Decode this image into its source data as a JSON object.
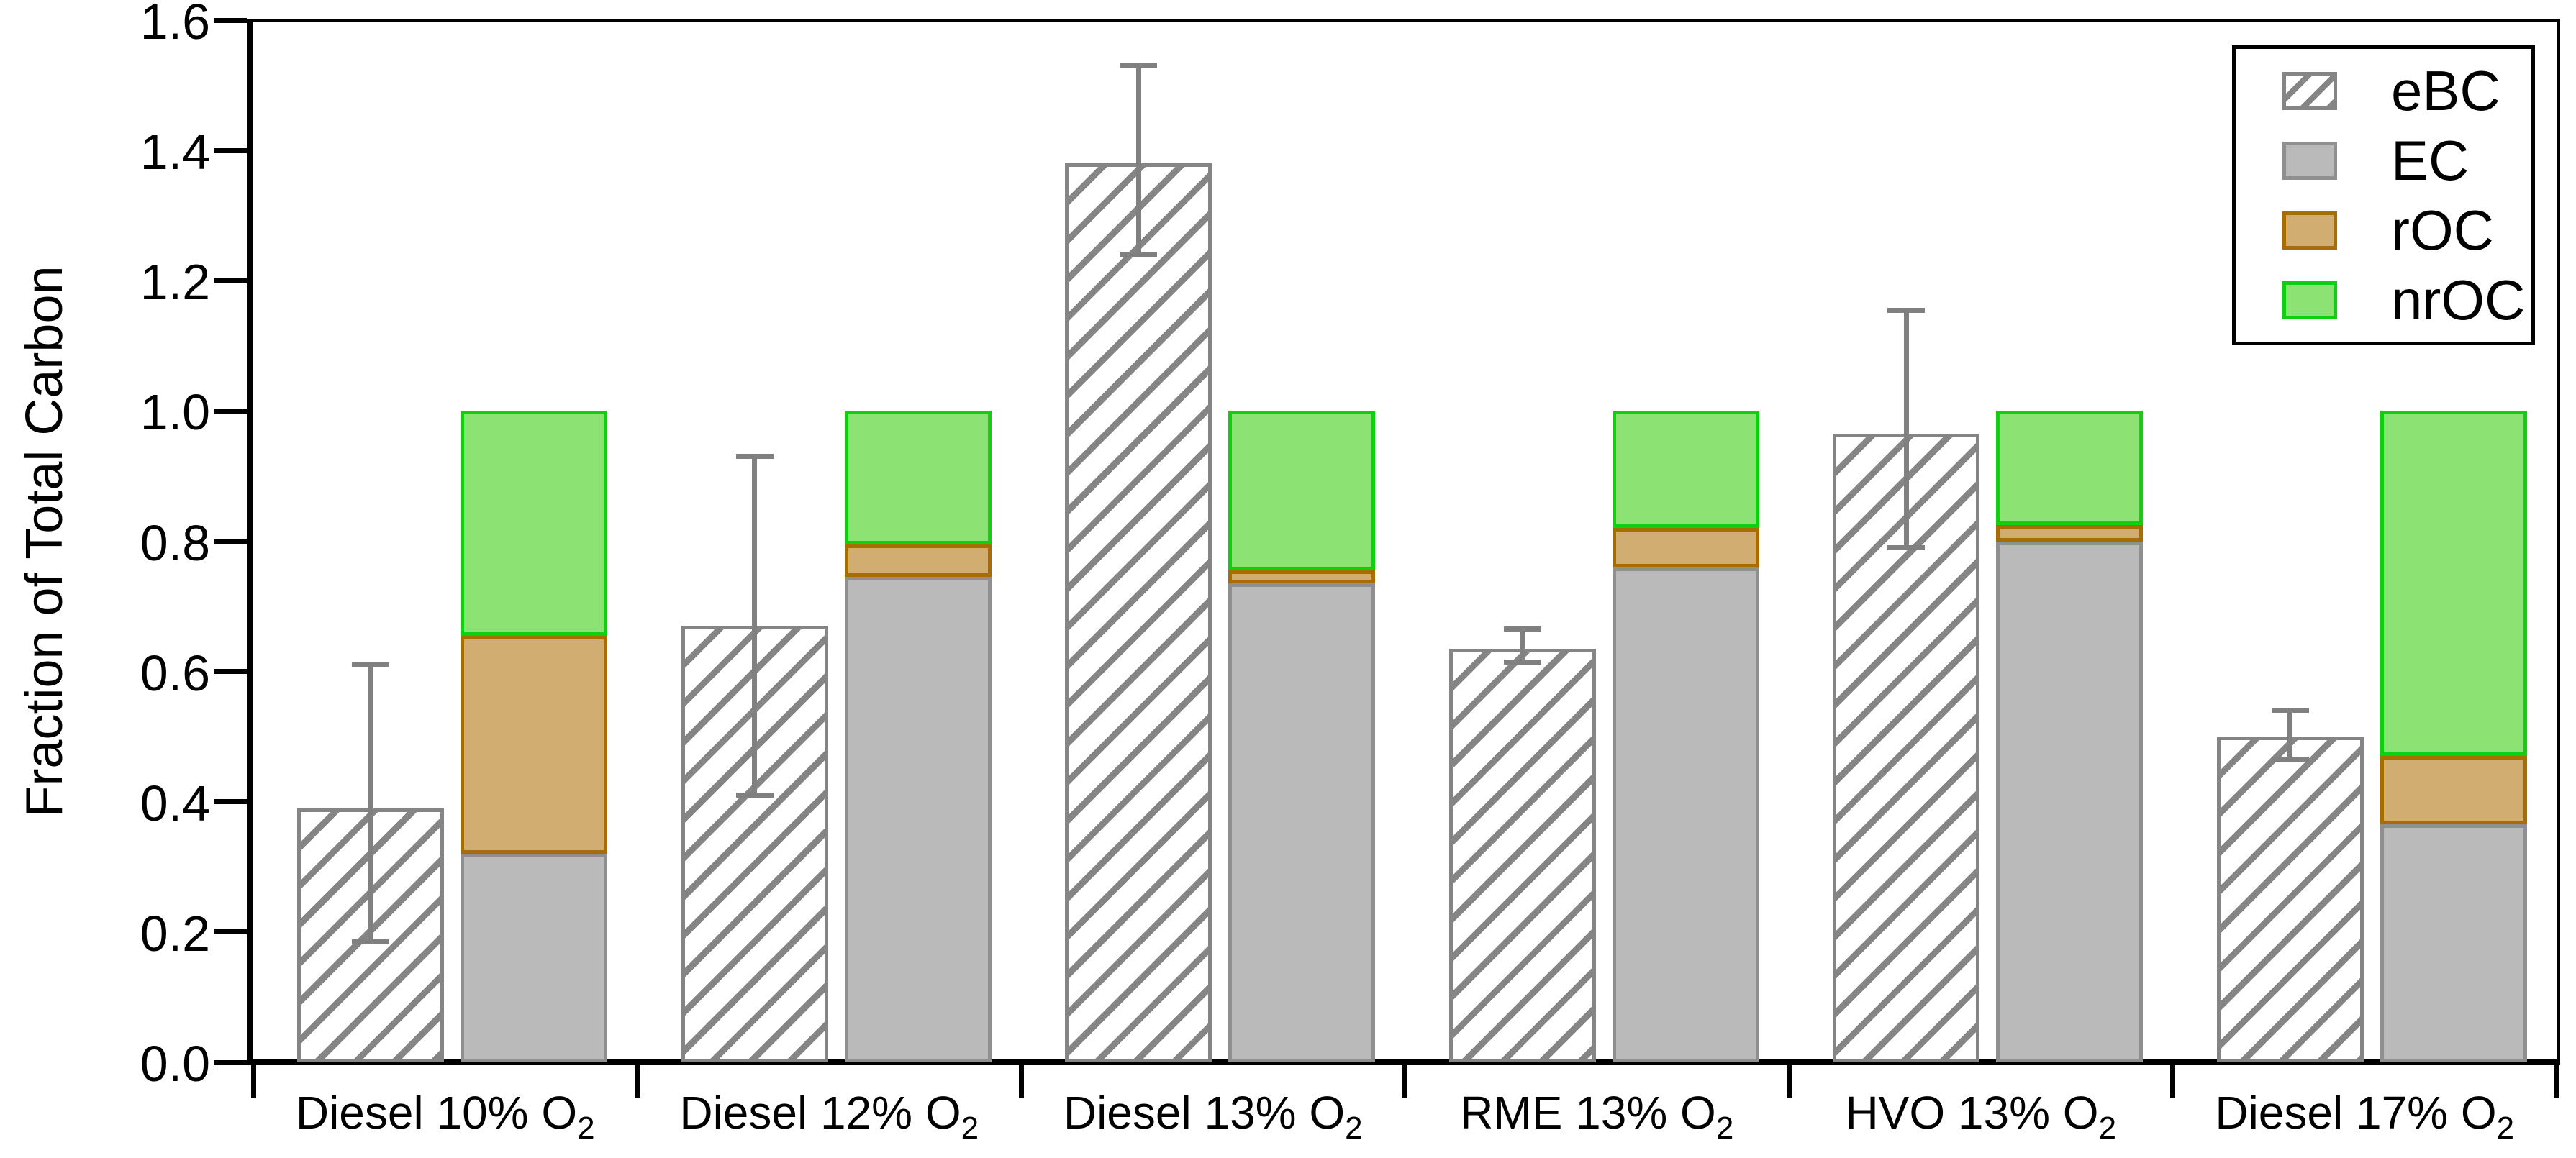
{
  "figure": {
    "y_axis_title": "Fraction of Total Carbon"
  },
  "legend": {
    "items": [
      {
        "label": "eBC",
        "swatch": "hatched"
      },
      {
        "label": "EC",
        "swatch": "gray"
      },
      {
        "label": "rOC",
        "swatch": "tan"
      },
      {
        "label": "nrOC",
        "swatch": "green"
      }
    ]
  },
  "colors": {
    "hatch_gray": "#858585",
    "ec_fill": "#bababa",
    "ec_border": "#8f8f8f",
    "roc_fill": "#d1ad72",
    "roc_border": "#a86d00",
    "nroc_fill": "#8ce273",
    "nroc_border": "#0fcf0f",
    "error_bar": "#808080",
    "axis": "#000000",
    "background": "#ffffff"
  },
  "chart_data": {
    "type": "bar",
    "title": "",
    "xlabel": "",
    "ylabel": "Fraction of Total Carbon",
    "ylim": [
      0,
      1.6
    ],
    "ytick_step": 0.2,
    "grid": false,
    "legend_position": "top-right",
    "bar_layout": "one hatched eBC bar with error bar beside one stacked EC/rOC/nrOC bar per category",
    "categories": [
      {
        "label": "Diesel 10% O",
        "subscript": "2"
      },
      {
        "label": "Diesel 12% O",
        "subscript": "2"
      },
      {
        "label": "Diesel 13% O",
        "subscript": "2"
      },
      {
        "label": "RME 13% O",
        "subscript": "2"
      },
      {
        "label": "HVO 13% O",
        "subscript": "2"
      },
      {
        "label": "Diesel 17% O",
        "subscript": "2"
      }
    ],
    "series": [
      {
        "name": "eBC",
        "style": "hatched",
        "stacked": false,
        "values": [
          0.39,
          0.67,
          1.38,
          0.635,
          0.965,
          0.5
        ],
        "error_low": [
          0.185,
          0.41,
          1.24,
          0.615,
          0.79,
          0.465
        ],
        "error_high": [
          0.61,
          0.93,
          1.53,
          0.665,
          1.155,
          0.54
        ]
      },
      {
        "name": "EC",
        "style": "fill",
        "stacked": true,
        "fill": "#bababa",
        "border": "#8f8f8f",
        "values": [
          0.32,
          0.745,
          0.735,
          0.76,
          0.8,
          0.365
        ]
      },
      {
        "name": "rOC",
        "style": "fill",
        "stacked": true,
        "fill": "#d1ad72",
        "border": "#a86d00",
        "values": [
          0.335,
          0.05,
          0.02,
          0.06,
          0.025,
          0.105
        ]
      },
      {
        "name": "nrOC",
        "style": "fill",
        "stacked": true,
        "fill": "#8ce273",
        "border": "#0fcf0f",
        "values": [
          0.345,
          0.205,
          0.245,
          0.18,
          0.175,
          0.53
        ]
      }
    ]
  }
}
